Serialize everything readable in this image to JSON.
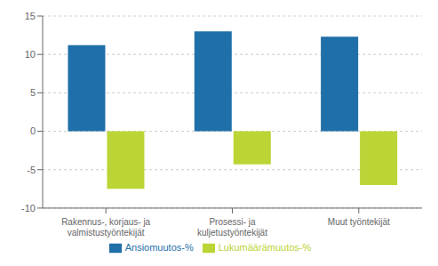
{
  "chart_data": {
    "type": "bar",
    "categories": [
      "Rakennus-, korjaus- ja\nvalmistustyöntekijät",
      "Prosessi- ja\nkuljetustyöntekijät",
      "Muut työntekijät"
    ],
    "series": [
      {
        "name": "Ansiomuutos-%",
        "color": "#1f6fa8",
        "values": [
          11.2,
          13.0,
          12.3
        ]
      },
      {
        "name": "Lukumäärämuutos-%",
        "color": "#bcd435",
        "values": [
          -7.5,
          -4.3,
          -7.0
        ]
      }
    ],
    "ylim": [
      -10,
      15
    ],
    "yticks": [
      -10,
      -5,
      0,
      5,
      10,
      15
    ],
    "grid": true,
    "legend": "bottom"
  }
}
